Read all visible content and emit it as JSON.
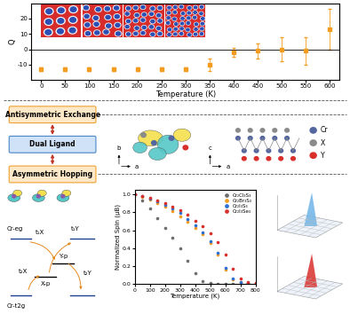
{
  "chart_data": [
    {
      "type": "scatter",
      "x_label": "Temperature (K)",
      "y_label": "Q",
      "x": [
        0,
        50,
        100,
        150,
        200,
        250,
        300,
        350,
        400,
        450,
        500,
        550,
        600
      ],
      "values": [
        -13,
        -13,
        -13,
        -13,
        -13,
        -13,
        -13,
        -10,
        -2,
        -1,
        0,
        -1,
        13
      ],
      "errors": [
        1,
        1,
        1,
        1,
        1,
        1,
        1,
        4,
        3,
        5,
        8,
        9,
        13
      ],
      "color": "#f39c1f",
      "marker": "s",
      "xlim": [
        -20,
        620
      ],
      "xticks": [
        0,
        50,
        100,
        150,
        200,
        250,
        300,
        350,
        400,
        450,
        500,
        550,
        600
      ],
      "ylim": [
        -20,
        30
      ],
      "yticks": [
        -10,
        0,
        10,
        20
      ],
      "reference_line": 0
    },
    {
      "type": "scatter",
      "x_label": "Temperature (K)",
      "y_label": "Normalized Spin (μB)",
      "x": [
        0,
        50,
        100,
        150,
        200,
        250,
        300,
        350,
        400,
        450,
        500,
        550,
        600,
        650,
        700,
        750,
        800
      ],
      "marker": "o",
      "line_style": "none",
      "legend": "upper right",
      "series": [
        {
          "name": "Cr₂Cl₃S₃",
          "color": "#6e6e6e",
          "values": [
            1.0,
            0.93,
            0.84,
            0.74,
            0.63,
            0.52,
            0.4,
            0.26,
            0.12,
            0.03,
            0.01,
            0.0,
            0.0,
            0.0,
            0.0,
            0.0,
            0.0
          ]
        },
        {
          "name": "Cr₂Br₃S₃",
          "color": "#f39c1f",
          "values": [
            1.0,
            0.97,
            0.94,
            0.9,
            0.86,
            0.81,
            0.76,
            0.7,
            0.63,
            0.56,
            0.46,
            0.33,
            0.16,
            0.05,
            0.02,
            0.01,
            0.0
          ]
        },
        {
          "name": "Cr₂I₃S₃",
          "color": "#2e6fd1",
          "values": [
            1.0,
            0.98,
            0.95,
            0.92,
            0.88,
            0.84,
            0.79,
            0.73,
            0.66,
            0.58,
            0.48,
            0.35,
            0.18,
            0.06,
            0.02,
            0.01,
            0.0
          ]
        },
        {
          "name": "Cr₂I₃Se₃",
          "color": "#d9302c",
          "values": [
            1.0,
            0.98,
            0.96,
            0.93,
            0.9,
            0.86,
            0.82,
            0.77,
            0.71,
            0.65,
            0.57,
            0.47,
            0.33,
            0.17,
            0.06,
            0.02,
            0.01
          ]
        }
      ],
      "xlim": [
        0,
        800
      ],
      "xticks": [
        0,
        100,
        200,
        300,
        400,
        500,
        600,
        700,
        800
      ],
      "ylim": [
        0,
        1.05
      ],
      "yticks": [
        {
          "value": 0,
          "label": "0.0"
        },
        {
          "value": 0.2,
          "label": "0.2"
        },
        {
          "value": 0.4,
          "label": "0.4"
        },
        {
          "value": 0.6,
          "label": "0.6"
        },
        {
          "value": 0.8,
          "label": "0.8"
        },
        {
          "value": 1.0,
          "label": "1.0"
        }
      ]
    }
  ],
  "diagram": {
    "boxes": [
      "Antisymmetric Exchange",
      "Dual Ligand",
      "Asymmetric Hopping"
    ],
    "structure_axes": [
      [
        "b",
        "a"
      ],
      [
        "c",
        "a"
      ]
    ],
    "atoms": [
      "Cr",
      "X",
      "Y"
    ],
    "hopping": {
      "levels": [
        "Cr-eg",
        "Cr-t2g",
        "X-p",
        "Y-p"
      ],
      "hops": [
        "t₁X",
        "t₁Y",
        "t₂X",
        "t₂Y"
      ]
    }
  }
}
